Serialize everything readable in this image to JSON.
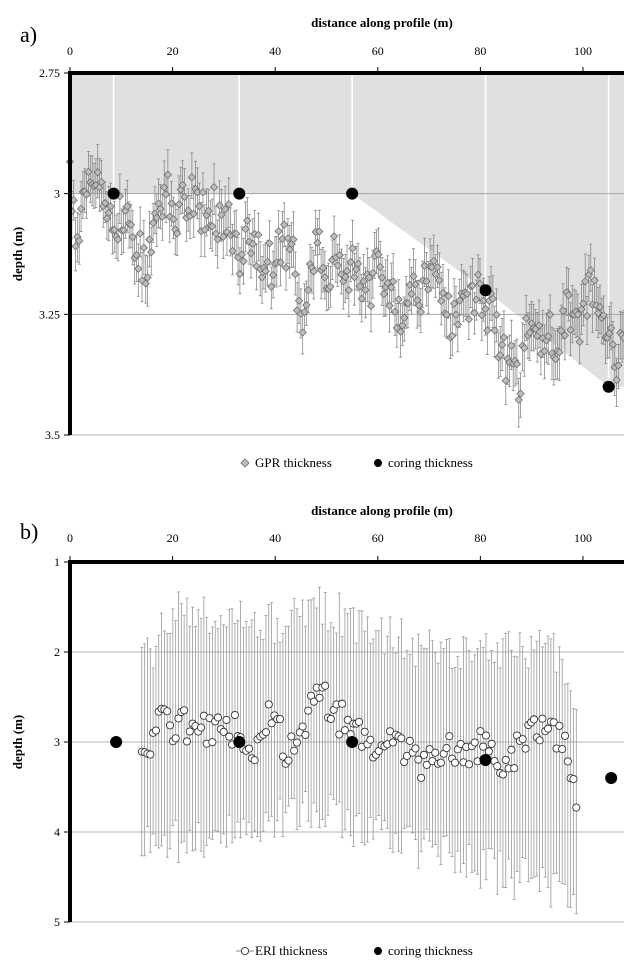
{
  "figure": {
    "panel_a_label": "a)",
    "panel_b_label": "b)"
  },
  "chart_data": [
    {
      "type": "scatter",
      "panel": "a)",
      "xlabel": "distance along profile (m)",
      "ylabel": "depth (m)",
      "xlim": [
        0,
        108
      ],
      "ylim": [
        2.75,
        3.5
      ],
      "y_inverted": true,
      "x_axis_position": "top",
      "x_ticks": [
        0,
        20,
        40,
        60,
        80,
        100
      ],
      "y_ticks": [
        2.75,
        3,
        3.25,
        3.5
      ],
      "y_tick_labels": [
        "2.75",
        "3",
        "3.25",
        "3.5"
      ],
      "grid": "horizontal",
      "legend_position": "bottom",
      "legend": [
        "GPR thickness",
        "coring thickness"
      ],
      "shaded_region": {
        "color": "#e0e0e0",
        "boundary": [
          [
            0,
            2.75
          ],
          [
            108,
            2.75
          ],
          [
            108,
            3.4
          ],
          [
            105,
            3.4
          ],
          [
            81,
            3.2
          ],
          [
            55,
            3.0
          ],
          [
            33,
            3.0
          ],
          [
            8.5,
            3.0
          ],
          [
            0,
            3.0
          ]
        ]
      },
      "vertical_lines": [
        8.5,
        33,
        55,
        81,
        105
      ],
      "series": [
        {
          "name": "GPR thickness",
          "marker": "diamond",
          "color": "#bdbdbd",
          "error_color": "#888888",
          "error_half_width": 0.05,
          "anchors": [
            [
              0,
              2.96
            ],
            [
              1.5,
              3.1
            ],
            [
              3,
              2.95
            ],
            [
              5,
              2.98
            ],
            [
              7,
              3.03
            ],
            [
              9,
              3.05
            ],
            [
              11,
              3.05
            ],
            [
              13,
              3.12
            ],
            [
              15,
              3.14
            ],
            [
              17,
              3.06
            ],
            [
              19,
              3.0
            ],
            [
              21,
              3.06
            ],
            [
              23,
              2.99
            ],
            [
              25,
              3.05
            ],
            [
              27,
              3.02
            ],
            [
              29,
              3.05
            ],
            [
              31,
              3.06
            ],
            [
              33,
              3.12
            ],
            [
              35,
              3.1
            ],
            [
              37,
              3.12
            ],
            [
              39,
              3.15
            ],
            [
              41,
              3.12
            ],
            [
              43,
              3.1
            ],
            [
              45,
              3.25
            ],
            [
              46.5,
              3.2
            ],
            [
              48,
              3.08
            ],
            [
              50,
              3.2
            ],
            [
              52,
              3.1
            ],
            [
              54,
              3.15
            ],
            [
              56,
              3.15
            ],
            [
              58,
              3.2
            ],
            [
              60,
              3.15
            ],
            [
              62,
              3.2
            ],
            [
              64,
              3.25
            ],
            [
              66,
              3.2
            ],
            [
              68,
              3.22
            ],
            [
              70,
              3.15
            ],
            [
              72,
              3.2
            ],
            [
              74,
              3.25
            ],
            [
              76,
              3.26
            ],
            [
              78,
              3.22
            ],
            [
              80,
              3.2
            ],
            [
              82,
              3.25
            ],
            [
              84,
              3.32
            ],
            [
              86,
              3.36
            ],
            [
              87.5,
              3.4
            ],
            [
              89,
              3.27
            ],
            [
              91,
              3.3
            ],
            [
              93,
              3.3
            ],
            [
              95,
              3.3
            ],
            [
              97,
              3.25
            ],
            [
              99,
              3.3
            ],
            [
              100.5,
              3.22
            ],
            [
              102,
              3.18
            ],
            [
              103.5,
              3.25
            ],
            [
              105,
              3.3
            ],
            [
              106.5,
              3.35
            ],
            [
              108,
              3.3
            ]
          ]
        },
        {
          "name": "coring thickness",
          "marker": "circle",
          "color": "#000000",
          "points": [
            [
              8.5,
              3.0
            ],
            [
              33,
              3.0
            ],
            [
              55,
              3.0
            ],
            [
              81,
              3.2
            ],
            [
              105,
              3.4
            ]
          ]
        }
      ]
    },
    {
      "type": "scatter",
      "panel": "b)",
      "xlabel": "distance along profile (m)",
      "ylabel": "depth (m)",
      "xlim": [
        0,
        108
      ],
      "ylim": [
        1,
        5
      ],
      "y_inverted": true,
      "x_axis_position": "top",
      "x_ticks": [
        0,
        20,
        40,
        60,
        80,
        100
      ],
      "y_ticks": [
        1,
        2,
        3,
        4,
        5
      ],
      "y_tick_labels": [
        "1",
        "2",
        "3",
        "4",
        "5"
      ],
      "grid": "horizontal",
      "legend_position": "bottom",
      "legend": [
        "ERI thickness",
        "coring thickness"
      ],
      "series": [
        {
          "name": "ERI thickness",
          "marker": "circle-open",
          "color": "#ffffff",
          "error_color": "#999999",
          "x_range": [
            14,
            99
          ],
          "anchors": [
            [
              14,
              3.2
            ],
            [
              16,
              3.05
            ],
            [
              18,
              2.7
            ],
            [
              20,
              2.85
            ],
            [
              22,
              2.75
            ],
            [
              24,
              2.95
            ],
            [
              26,
              2.85
            ],
            [
              28,
              2.95
            ],
            [
              30,
              2.85
            ],
            [
              32,
              2.85
            ],
            [
              34,
              3.2
            ],
            [
              36,
              3.15
            ],
            [
              38,
              2.75
            ],
            [
              40,
              2.7
            ],
            [
              42,
              3.1
            ],
            [
              44,
              3.1
            ],
            [
              46,
              2.75
            ],
            [
              48,
              2.5
            ],
            [
              50,
              2.55
            ],
            [
              52,
              2.75
            ],
            [
              54,
              2.75
            ],
            [
              56,
              2.9
            ],
            [
              58,
              3.05
            ],
            [
              60,
              2.95
            ],
            [
              62,
              3.05
            ],
            [
              64,
              3.0
            ],
            [
              66,
              3.1
            ],
            [
              68,
              3.25
            ],
            [
              70,
              3.2
            ],
            [
              72,
              3.15
            ],
            [
              74,
              3.05
            ],
            [
              76,
              3.2
            ],
            [
              78,
              3.1
            ],
            [
              80,
              3.05
            ],
            [
              82,
              2.95
            ],
            [
              84,
              3.2
            ],
            [
              86,
              3.15
            ],
            [
              88,
              3.05
            ],
            [
              90,
              2.9
            ],
            [
              92,
              2.8
            ],
            [
              94,
              2.85
            ],
            [
              96,
              3.0
            ],
            [
              98,
              3.3
            ],
            [
              99,
              3.75
            ]
          ],
          "error_top_anchors": [
            [
              14,
              2.2
            ],
            [
              20,
              1.5
            ],
            [
              30,
              1.6
            ],
            [
              40,
              1.7
            ],
            [
              48,
              1.45
            ],
            [
              56,
              1.7
            ],
            [
              66,
              1.9
            ],
            [
              76,
              2.0
            ],
            [
              86,
              2.0
            ],
            [
              94,
              2.0
            ],
            [
              99,
              2.6
            ]
          ],
          "error_bottom_anchors": [
            [
              14,
              4.1
            ],
            [
              20,
              4.1
            ],
            [
              30,
              4.05
            ],
            [
              40,
              3.9
            ],
            [
              48,
              3.7
            ],
            [
              56,
              3.95
            ],
            [
              66,
              4.15
            ],
            [
              76,
              4.3
            ],
            [
              86,
              4.5
            ],
            [
              94,
              4.6
            ],
            [
              99,
              4.9
            ]
          ]
        },
        {
          "name": "coring thickness",
          "marker": "circle",
          "color": "#000000",
          "points": [
            [
              9,
              3.0
            ],
            [
              33,
              3.0
            ],
            [
              55,
              3.0
            ],
            [
              81,
              3.2
            ],
            [
              105.5,
              3.4
            ]
          ]
        }
      ]
    }
  ]
}
